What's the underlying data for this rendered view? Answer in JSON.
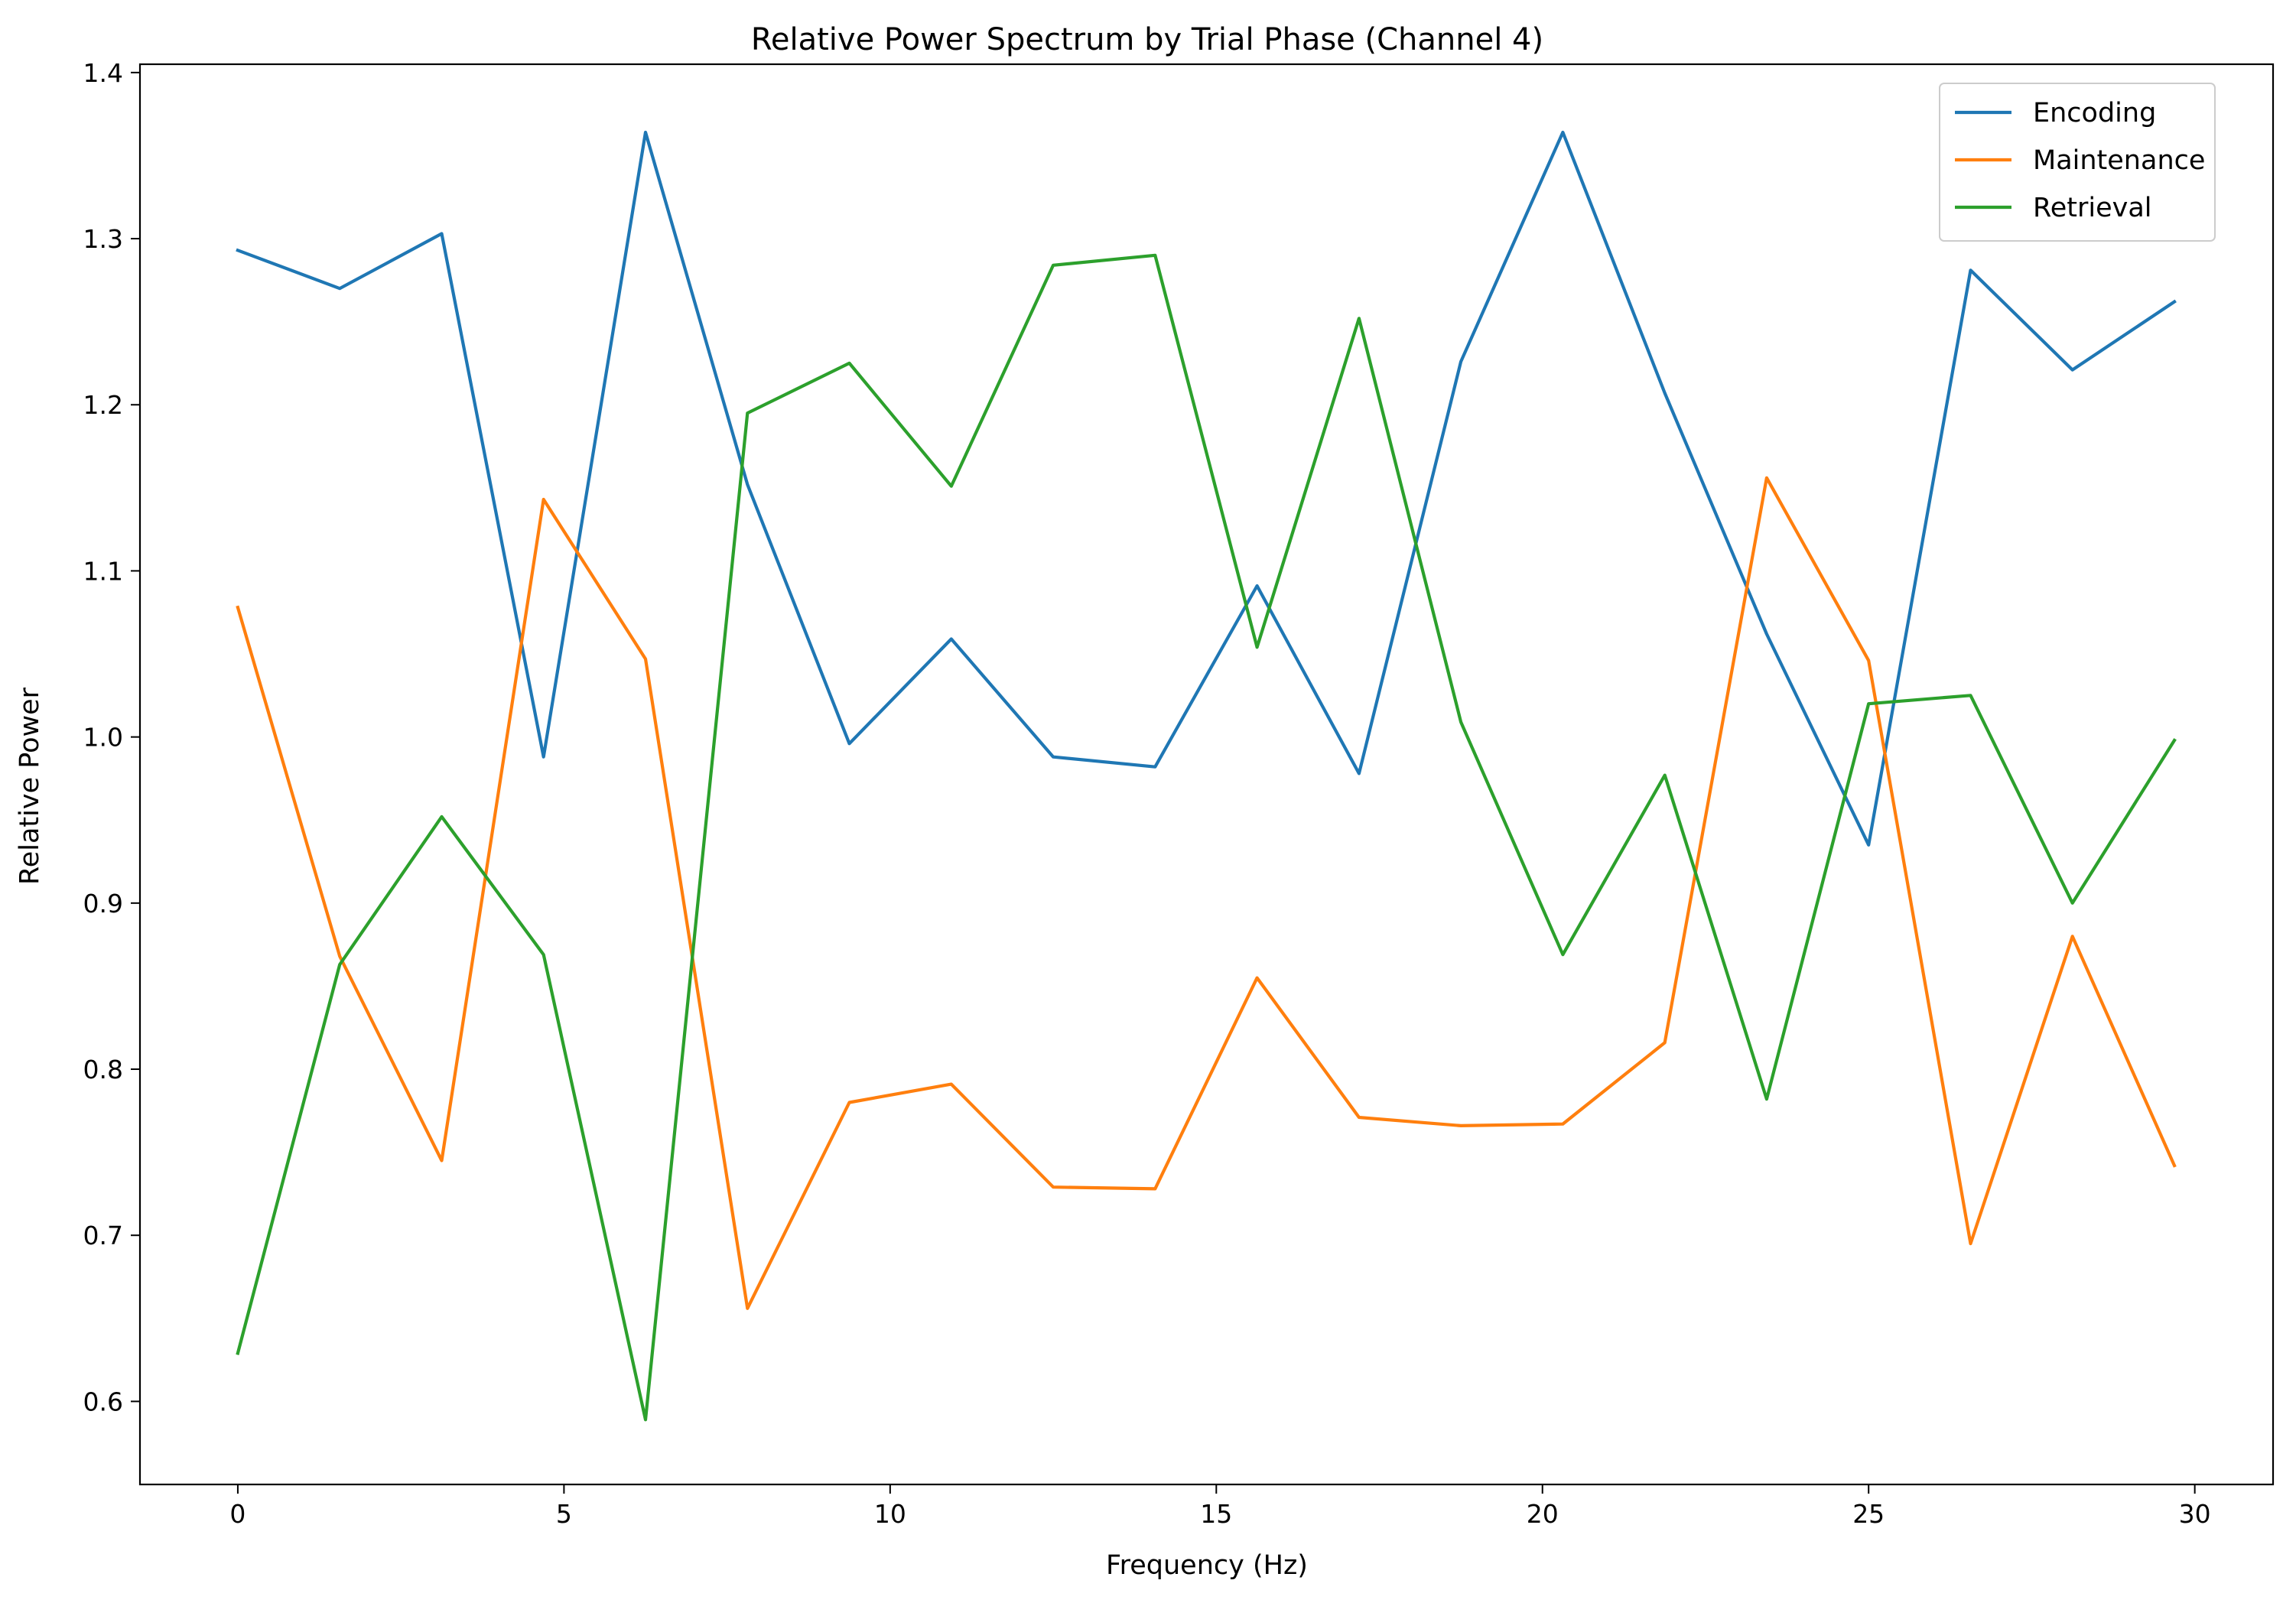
{
  "chart_data": {
    "type": "line",
    "title": "Relative Power Spectrum by Trial Phase (Channel 4)",
    "xlabel": "Frequency (Hz)",
    "ylabel": "Relative Power",
    "xlim": [
      -1.5,
      31.2
    ],
    "ylim": [
      0.55,
      1.405
    ],
    "xticks": [
      0,
      5,
      10,
      15,
      20,
      25,
      30
    ],
    "yticks": [
      0.6,
      0.7,
      0.8,
      0.9,
      1.0,
      1.1,
      1.2,
      1.3,
      1.4
    ],
    "ytick_labels": [
      "0.6",
      "0.7",
      "0.8",
      "0.9",
      "1.0",
      "1.1",
      "1.2",
      "1.3",
      "1.4"
    ],
    "grid": false,
    "legend_position": "top-right",
    "x": [
      0,
      1.5625,
      3.125,
      4.6875,
      6.25,
      7.8125,
      9.375,
      10.9375,
      12.5,
      14.0625,
      15.625,
      17.1875,
      18.75,
      20.3125,
      21.875,
      23.4375,
      25.0,
      26.5625,
      28.125,
      29.6875
    ],
    "series": [
      {
        "name": "Encoding",
        "color": "#1f77b4",
        "values": [
          1.293,
          1.27,
          1.303,
          0.988,
          1.364,
          1.152,
          0.996,
          1.059,
          0.988,
          0.982,
          1.091,
          0.978,
          1.226,
          1.364,
          1.207,
          1.062,
          0.935,
          1.281,
          1.221,
          1.262
        ]
      },
      {
        "name": "Maintenance",
        "color": "#ff7f0e",
        "values": [
          1.078,
          0.868,
          0.745,
          1.143,
          1.047,
          0.656,
          0.78,
          0.791,
          0.729,
          0.728,
          0.855,
          0.771,
          0.766,
          0.767,
          0.816,
          1.156,
          1.046,
          0.695,
          0.88,
          0.742
        ]
      },
      {
        "name": "Retrieval",
        "color": "#2ca02c",
        "values": [
          0.629,
          0.863,
          0.952,
          0.869,
          0.589,
          1.195,
          1.225,
          1.151,
          1.284,
          1.29,
          1.054,
          1.252,
          1.009,
          0.869,
          0.977,
          0.782,
          1.02,
          1.025,
          0.9,
          0.998
        ]
      }
    ]
  }
}
